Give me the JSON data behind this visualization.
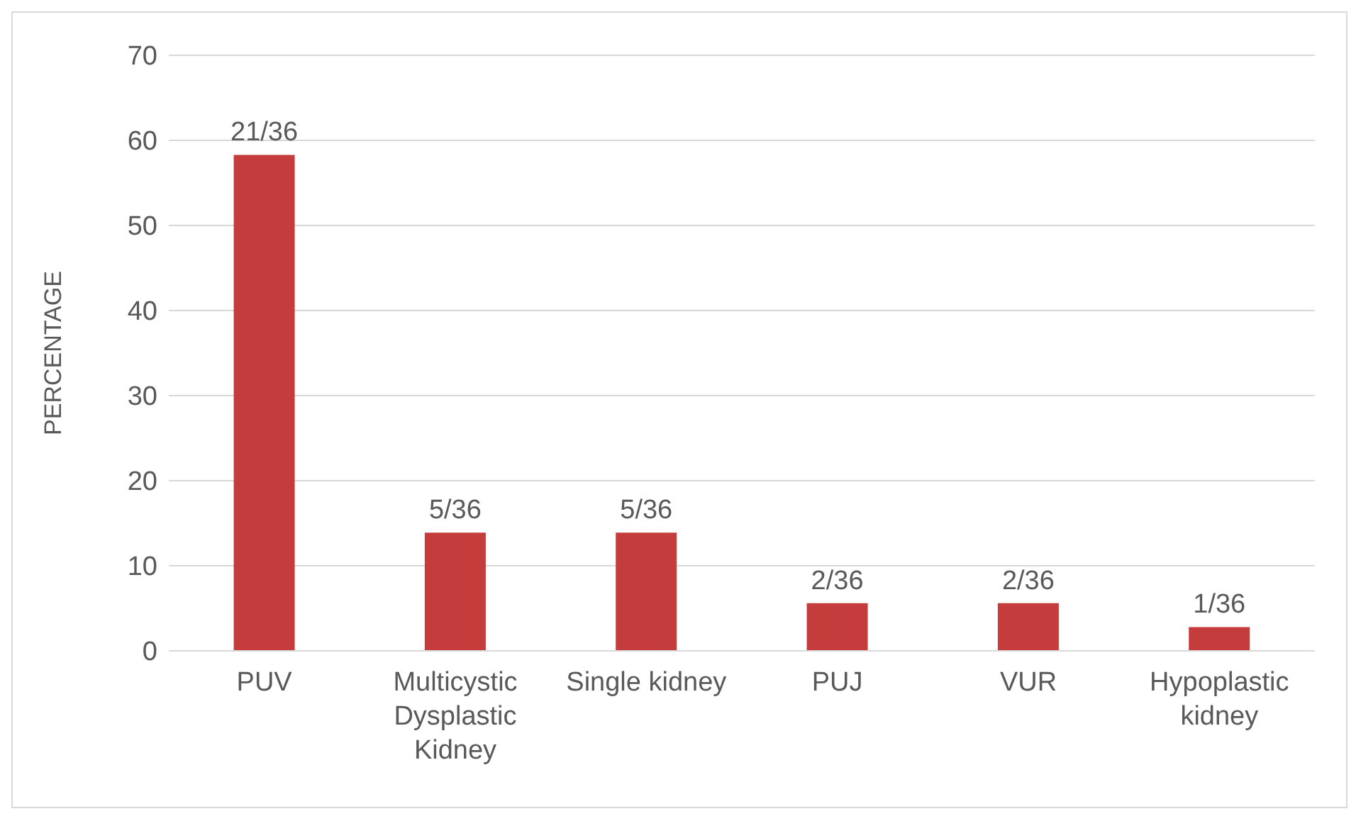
{
  "chart_data": {
    "type": "bar",
    "ylabel": "PERCENTAGE",
    "categories": [
      "PUV",
      "Multicystic Dysplastic Kidney",
      "Single kidney",
      "PUJ",
      "VUR",
      "Hypoplastic kidney"
    ],
    "values": [
      58.3,
      13.9,
      13.9,
      5.6,
      5.6,
      2.8
    ],
    "value_labels": [
      "21/36",
      "5/36",
      "5/36",
      "2/36",
      "2/36",
      "1/36"
    ],
    "color": "#c43c3c",
    "ylim": [
      0,
      70
    ],
    "yticks": [
      0,
      10,
      20,
      30,
      40,
      50,
      60,
      70
    ],
    "grid": "y"
  }
}
